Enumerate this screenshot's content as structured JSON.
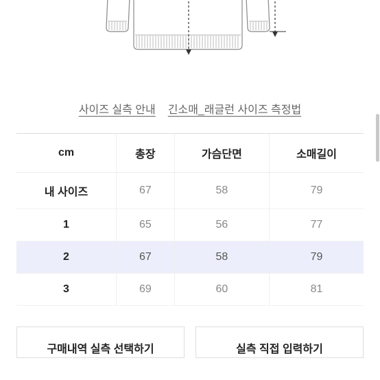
{
  "diagram": {
    "stroke": "#888888",
    "dash_color": "#555555",
    "hatch_color": "#999999"
  },
  "links": {
    "size_guide": "사이즈 실측 안내",
    "raglan_guide": "긴소매_래글런 사이즈 측정법"
  },
  "table": {
    "unit_header": "cm",
    "columns": [
      "총장",
      "가슴단면",
      "소매길이"
    ],
    "rows": [
      {
        "label": "내 사이즈",
        "values": [
          "67",
          "58",
          "79"
        ],
        "highlight": false
      },
      {
        "label": "1",
        "values": [
          "65",
          "56",
          "77"
        ],
        "highlight": false
      },
      {
        "label": "2",
        "values": [
          "67",
          "58",
          "79"
        ],
        "highlight": true
      },
      {
        "label": "3",
        "values": [
          "69",
          "60",
          "81"
        ],
        "highlight": false
      }
    ]
  },
  "buttons": {
    "select_purchase": "구매내역 실측 선택하기",
    "manual_input": "실측 직접 입력하기"
  },
  "colors": {
    "highlight_bg": "#eceffb",
    "border": "#eeeeee",
    "text_primary": "#222222",
    "text_secondary": "#888888",
    "link": "#666666"
  }
}
